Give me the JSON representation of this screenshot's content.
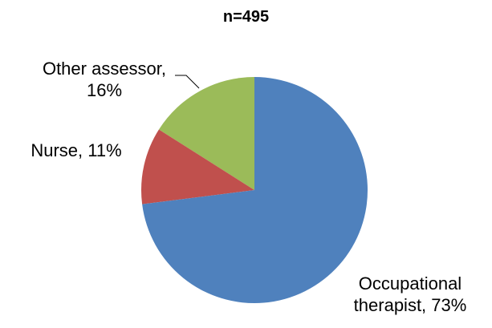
{
  "chart_data": {
    "type": "pie",
    "title": "n=495",
    "values": [
      73,
      11,
      16
    ],
    "value_labels": [
      "Occupational therapist, 73%",
      "Nurse, 11%",
      "Other assessor, 16%"
    ],
    "colors": [
      "#4f81bd",
      "#c0504d",
      "#9bbb59"
    ]
  }
}
